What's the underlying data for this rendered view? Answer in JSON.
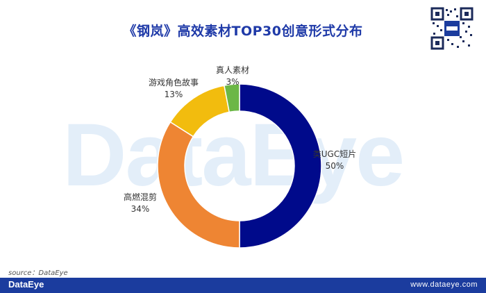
{
  "header": {
    "title": "《钢岚》高效素材TOP30创意形式分布"
  },
  "watermark": {
    "text": "DataEye"
  },
  "source": {
    "text": "source：DataEye"
  },
  "footer": {
    "logo": "DataEye",
    "url": "www.dataeye.com"
  },
  "chart_data": {
    "type": "pie",
    "donut": true,
    "title": "《钢岚》高效素材TOP30创意形式分布",
    "slices": [
      {
        "label": "类UGC短片",
        "value": 50,
        "value_label": "50%",
        "color": "#000a8b"
      },
      {
        "label": "高燃混剪",
        "value": 34,
        "value_label": "34%",
        "color": "#ee8533"
      },
      {
        "label": "游戏角色故事",
        "value": 13,
        "value_label": "13%",
        "color": "#f2bc0e"
      },
      {
        "label": "真人素材",
        "value": 3,
        "value_label": "3%",
        "color": "#6cb746"
      }
    ]
  }
}
